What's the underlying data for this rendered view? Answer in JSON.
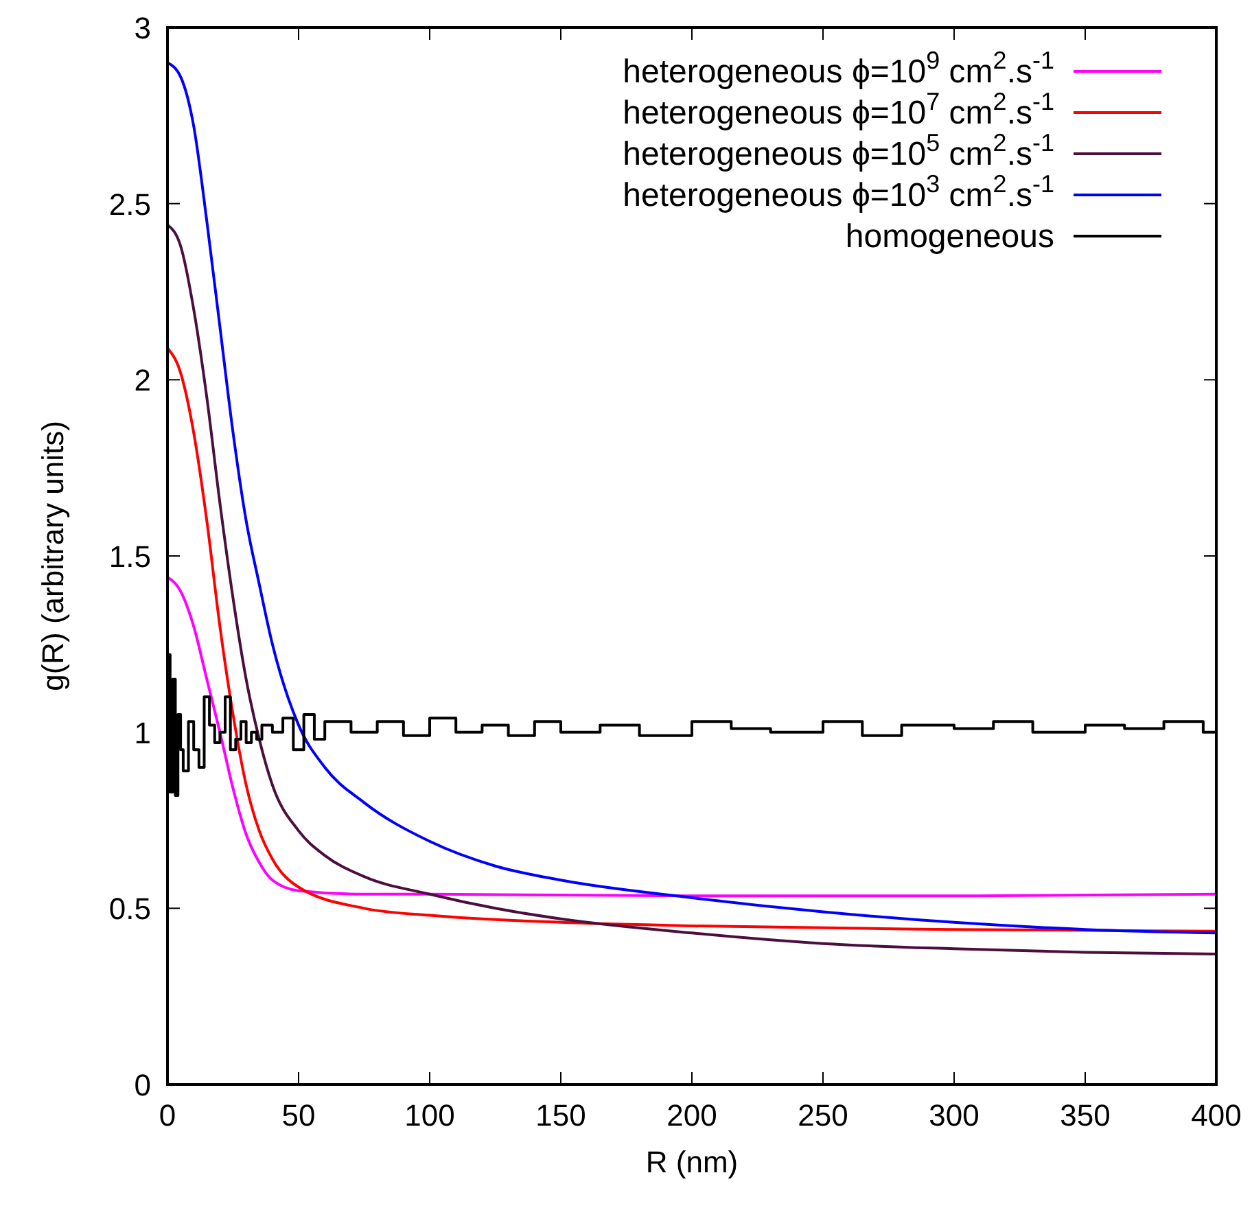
{
  "chart_data": {
    "type": "line",
    "xlabel": "R (nm)",
    "ylabel": "g(R) (arbitrary units)",
    "xlim": [
      0,
      400
    ],
    "ylim": [
      0,
      3
    ],
    "xticks": [
      0,
      50,
      100,
      150,
      200,
      250,
      300,
      350,
      400
    ],
    "yticks": [
      0,
      0.5,
      1,
      1.5,
      2,
      2.5,
      3
    ],
    "grid": false,
    "legend": "top right",
    "line_style": "solid",
    "series": [
      {
        "name": "heterogeneous ϕ=10$^{9}$ cm$^{2}$.s$^{-1}$",
        "color": "#ff00ff",
        "x": [
          0,
          5,
          10,
          15,
          20,
          25,
          30,
          35,
          40,
          50,
          75,
          100,
          200,
          300,
          400
        ],
        "values": [
          1.44,
          1.4,
          1.3,
          1.15,
          1.0,
          0.84,
          0.71,
          0.63,
          0.58,
          0.55,
          0.54,
          0.54,
          0.535,
          0.535,
          0.54
        ]
      },
      {
        "name": "heterogeneous ϕ=10$^{7}$ cm$^{2}$.s$^{-1}$",
        "color": "#ff0000",
        "x": [
          0,
          5,
          10,
          15,
          20,
          25,
          30,
          35,
          40,
          50,
          75,
          100,
          150,
          200,
          300,
          400
        ],
        "values": [
          2.09,
          2.02,
          1.85,
          1.6,
          1.3,
          1.05,
          0.85,
          0.72,
          0.64,
          0.56,
          0.5,
          0.48,
          0.46,
          0.45,
          0.44,
          0.435
        ]
      },
      {
        "name": "heterogeneous ϕ=10$^{5}$ cm$^{2}$.s$^{-1}$",
        "color": "#4b0f3f",
        "x": [
          0,
          5,
          10,
          15,
          20,
          25,
          30,
          35,
          40,
          50,
          60,
          75,
          100,
          125,
          150,
          200,
          250,
          300,
          350,
          400
        ],
        "values": [
          2.44,
          2.38,
          2.2,
          1.95,
          1.65,
          1.38,
          1.15,
          0.98,
          0.85,
          0.72,
          0.65,
          0.59,
          0.54,
          0.5,
          0.47,
          0.43,
          0.4,
          0.385,
          0.375,
          0.37
        ]
      },
      {
        "name": "heterogeneous ϕ=10$^{3}$ cm$^{2}$.s$^{-1}$",
        "color": "#0000ff",
        "x": [
          0,
          5,
          10,
          15,
          20,
          25,
          30,
          35,
          40,
          50,
          60,
          75,
          100,
          125,
          150,
          200,
          250,
          300,
          350,
          400
        ],
        "values": [
          2.9,
          2.86,
          2.72,
          2.45,
          2.15,
          1.85,
          1.6,
          1.42,
          1.25,
          1.02,
          0.9,
          0.8,
          0.69,
          0.62,
          0.58,
          0.53,
          0.49,
          0.46,
          0.44,
          0.43
        ]
      },
      {
        "name": "homogeneous",
        "type": "step",
        "color": "#000000",
        "x": [
          0,
          1,
          2,
          3,
          4,
          5,
          6,
          8,
          10,
          12,
          14,
          16,
          18,
          20,
          22,
          24,
          26,
          28,
          30,
          32,
          34,
          36,
          40,
          44,
          48,
          52,
          56,
          60,
          70,
          80,
          90,
          100,
          110,
          120,
          130,
          140,
          150,
          165,
          180,
          200,
          215,
          230,
          250,
          265,
          280,
          300,
          315,
          330,
          350,
          365,
          380,
          395,
          400
        ],
        "values": [
          1.22,
          0.83,
          1.15,
          0.82,
          1.05,
          0.95,
          0.89,
          1.03,
          0.95,
          0.9,
          1.1,
          1.02,
          0.97,
          1.0,
          1.1,
          0.95,
          0.98,
          1.03,
          0.97,
          1.0,
          0.98,
          1.02,
          1.0,
          1.04,
          0.95,
          1.05,
          0.98,
          1.03,
          1.0,
          1.03,
          0.99,
          1.04,
          1.0,
          1.02,
          0.99,
          1.03,
          1.0,
          1.02,
          0.99,
          1.03,
          1.01,
          1.0,
          1.03,
          0.99,
          1.02,
          1.01,
          1.03,
          1.0,
          1.02,
          1.01,
          1.03,
          1.0,
          1.02
        ]
      }
    ]
  }
}
